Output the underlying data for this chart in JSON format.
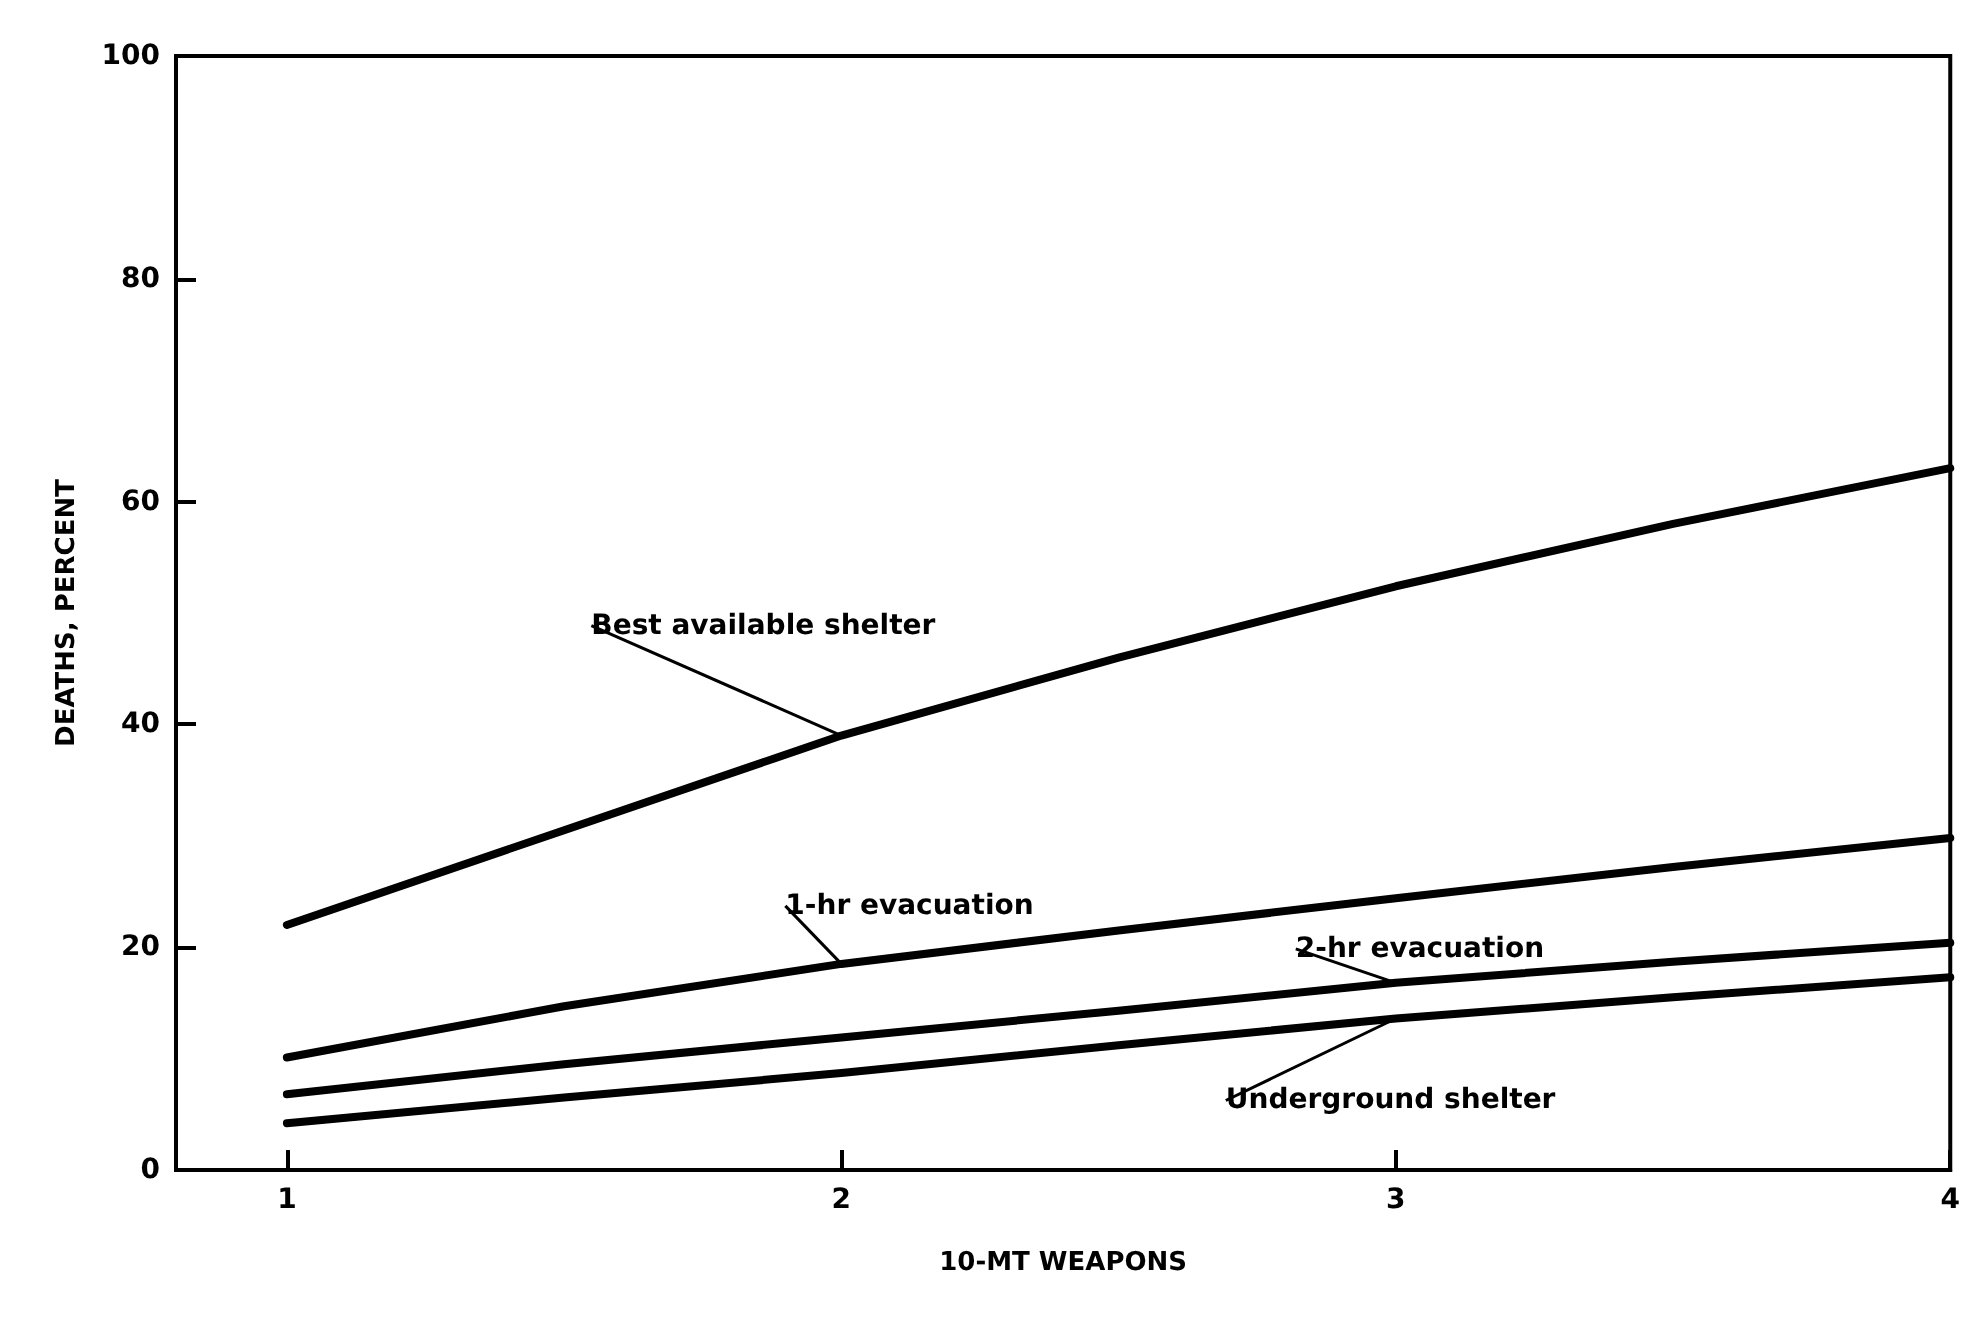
{
  "chart_data": {
    "type": "line",
    "xlabel": "10-MT WEAPONS",
    "ylabel": "DEATHS, PERCENT",
    "x": [
      1,
      1.5,
      2,
      2.5,
      3,
      3.5,
      4
    ],
    "series": [
      {
        "name": "Best available shelter",
        "color": "#000000",
        "values": [
          22,
          30.5,
          39,
          46,
          52.4,
          58,
          63
        ]
      },
      {
        "name": "1-hr evacuation",
        "color": "#000000",
        "values": [
          10.1,
          14.7,
          18.5,
          21.5,
          24.4,
          27.2,
          29.8
        ]
      },
      {
        "name": "2-hr evacuation",
        "color": "#000000",
        "values": [
          6.8,
          9.5,
          11.9,
          14.3,
          16.8,
          18.7,
          20.4
        ]
      },
      {
        "name": "Underground shelter",
        "color": "#000000",
        "values": [
          4.2,
          6.5,
          8.7,
          11.2,
          13.6,
          15.5,
          17.3
        ]
      }
    ],
    "xlim": [
      0.8,
      4
    ],
    "xticks": [
      1,
      2,
      3,
      4
    ],
    "ylim": [
      0,
      100
    ],
    "yticks": [
      0,
      20,
      40,
      60,
      80,
      100
    ],
    "grid": false,
    "legend": false,
    "marker": "none",
    "line_style": "solid"
  }
}
